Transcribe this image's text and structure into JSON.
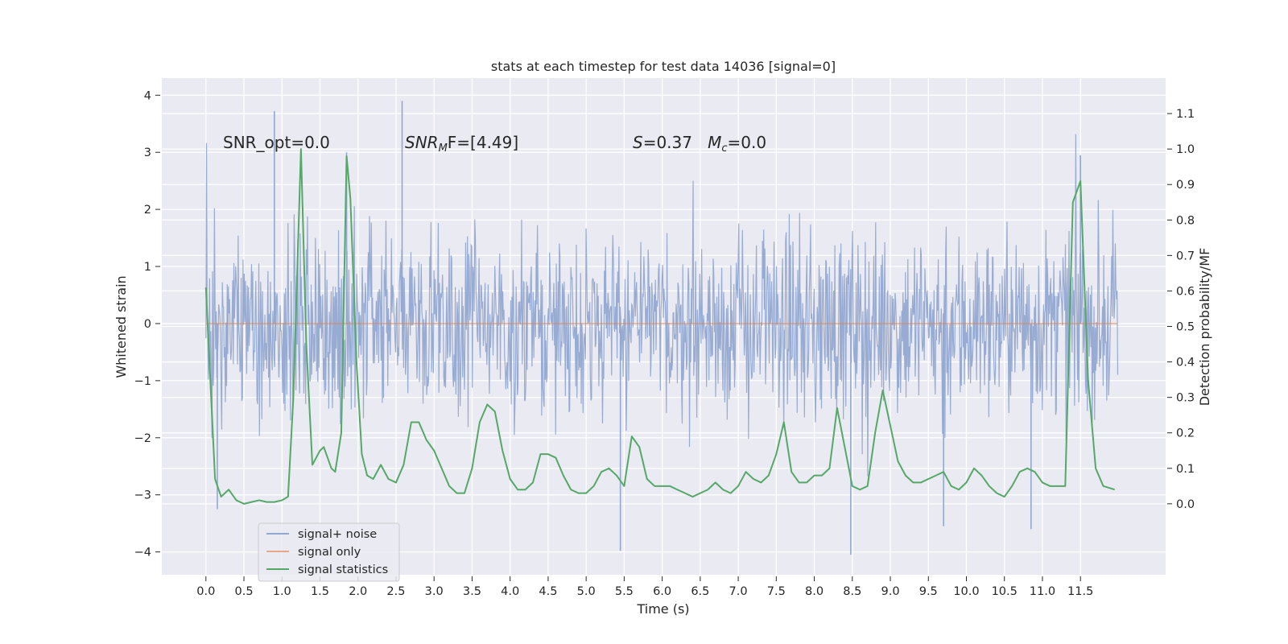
{
  "chart_data": {
    "type": "line",
    "title": "stats at each timestep for test data 14036 [signal=0]",
    "xlabel": "Time (s)",
    "ylabel_left": "Whitened strain",
    "ylabel_right": "Detection probability/MF",
    "xlim": [
      -0.58,
      12.62
    ],
    "ylim_left": [
      -4.4,
      4.3
    ],
    "ylim_right": [
      -0.2,
      1.2
    ],
    "x_ticks": [
      0.0,
      0.5,
      1.0,
      1.5,
      2.0,
      2.5,
      3.0,
      3.5,
      4.0,
      4.5,
      5.0,
      5.5,
      6.0,
      6.5,
      7.0,
      7.5,
      8.0,
      8.5,
      9.0,
      9.5,
      10.0,
      10.5,
      11.0,
      11.5
    ],
    "x_tick_labels": [
      "0.0",
      "0.5",
      "1.0",
      "1.5",
      "2.0",
      "2.5",
      "3.0",
      "3.5",
      "4.0",
      "4.5",
      "5.0",
      "5.5",
      "6.0",
      "6.5",
      "7.0",
      "7.5",
      "8.0",
      "8.5",
      "9.0",
      "9.5",
      "10.0",
      "10.5",
      "11.0",
      "11.5"
    ],
    "y_left_ticks": [
      -4,
      -3,
      -2,
      -1,
      0,
      1,
      2,
      3,
      4
    ],
    "y_left_tick_labels": [
      "−4",
      "−3",
      "−2",
      "−1",
      "0",
      "1",
      "2",
      "3",
      "4"
    ],
    "y_right_ticks": [
      0.0,
      0.1,
      0.2,
      0.3,
      0.4,
      0.5,
      0.6,
      0.7,
      0.8,
      0.9,
      1.0,
      1.1
    ],
    "y_right_tick_labels": [
      "0.0",
      "0.1",
      "0.2",
      "0.3",
      "0.4",
      "0.5",
      "0.6",
      "0.7",
      "0.8",
      "0.9",
      "1.0",
      "1.1"
    ],
    "grid": true,
    "legend_position": "lower-left",
    "annotations": [
      {
        "text": "SNR_opt=0.0",
        "x": 0.2,
        "y": 3.0
      },
      {
        "text_parts": [
          "SNR",
          "M",
          "F=[4.49]"
        ],
        "x": 2.6,
        "y": 3.0
      },
      {
        "text_parts": [
          "S",
          "=0.37   ",
          "M",
          "c",
          "=0.0"
        ],
        "x": 5.6,
        "y": 3.0
      }
    ],
    "series": [
      {
        "name": "signal+ noise",
        "axis": "left",
        "color": "#92a8d1",
        "style": "dense noise band",
        "x_range": [
          0.0,
          11.99
        ],
        "approx_envelope": [
          -2.6,
          2.6
        ],
        "peak_values": [
          {
            "x": 0.9,
            "y": 3.72
          },
          {
            "x": 2.58,
            "y": 3.9
          },
          {
            "x": 5.45,
            "y": -3.98
          },
          {
            "x": 8.48,
            "y": -4.05
          },
          {
            "x": 9.7,
            "y": -3.55
          },
          {
            "x": 10.85,
            "y": -3.6
          },
          {
            "x": 0.15,
            "y": -3.25
          },
          {
            "x": 1.85,
            "y": 3.0
          },
          {
            "x": 11.5,
            "y": 2.95
          }
        ]
      },
      {
        "name": "signal only",
        "axis": "left",
        "color": "#dd8452",
        "x": [
          0.0,
          11.99
        ],
        "y": [
          0.0,
          0.0
        ]
      },
      {
        "name": "signal statistics",
        "axis": "right",
        "color": "#55a868",
        "x": [
          0.0,
          0.12,
          0.2,
          0.3,
          0.4,
          0.5,
          0.6,
          0.7,
          0.8,
          0.9,
          1.0,
          1.08,
          1.15,
          1.25,
          1.32,
          1.4,
          1.45,
          1.5,
          1.55,
          1.6,
          1.65,
          1.7,
          1.78,
          1.85,
          1.9,
          1.98,
          2.05,
          2.12,
          2.2,
          2.3,
          2.4,
          2.5,
          2.6,
          2.7,
          2.8,
          2.9,
          3.0,
          3.1,
          3.2,
          3.3,
          3.4,
          3.5,
          3.6,
          3.7,
          3.8,
          3.9,
          4.0,
          4.1,
          4.2,
          4.3,
          4.4,
          4.5,
          4.6,
          4.7,
          4.8,
          4.9,
          5.0,
          5.1,
          5.2,
          5.3,
          5.4,
          5.5,
          5.6,
          5.7,
          5.8,
          5.9,
          6.0,
          6.1,
          6.2,
          6.3,
          6.4,
          6.5,
          6.6,
          6.7,
          6.8,
          6.9,
          7.0,
          7.1,
          7.2,
          7.3,
          7.4,
          7.5,
          7.6,
          7.7,
          7.8,
          7.9,
          8.0,
          8.1,
          8.2,
          8.3,
          8.4,
          8.5,
          8.6,
          8.7,
          8.8,
          8.9,
          9.0,
          9.1,
          9.2,
          9.3,
          9.4,
          9.5,
          9.6,
          9.7,
          9.8,
          9.9,
          10.0,
          10.1,
          10.2,
          10.3,
          10.4,
          10.5,
          10.6,
          10.7,
          10.8,
          10.9,
          11.0,
          11.1,
          11.2,
          11.3,
          11.4,
          11.5,
          11.6,
          11.7,
          11.8,
          11.95
        ],
        "y": [
          0.61,
          0.07,
          0.02,
          0.04,
          0.01,
          0.0,
          0.005,
          0.01,
          0.005,
          0.005,
          0.01,
          0.02,
          0.3,
          1.0,
          0.45,
          0.11,
          0.13,
          0.15,
          0.16,
          0.13,
          0.1,
          0.09,
          0.2,
          0.98,
          0.86,
          0.4,
          0.14,
          0.08,
          0.07,
          0.11,
          0.07,
          0.06,
          0.11,
          0.23,
          0.23,
          0.18,
          0.15,
          0.1,
          0.05,
          0.03,
          0.03,
          0.1,
          0.23,
          0.28,
          0.26,
          0.15,
          0.07,
          0.04,
          0.04,
          0.06,
          0.14,
          0.14,
          0.13,
          0.08,
          0.04,
          0.03,
          0.03,
          0.05,
          0.09,
          0.1,
          0.08,
          0.05,
          0.19,
          0.16,
          0.07,
          0.05,
          0.05,
          0.05,
          0.04,
          0.03,
          0.02,
          0.03,
          0.04,
          0.06,
          0.04,
          0.03,
          0.05,
          0.09,
          0.07,
          0.06,
          0.08,
          0.14,
          0.23,
          0.09,
          0.06,
          0.06,
          0.08,
          0.08,
          0.1,
          0.27,
          0.16,
          0.05,
          0.04,
          0.05,
          0.2,
          0.32,
          0.22,
          0.12,
          0.08,
          0.06,
          0.06,
          0.07,
          0.08,
          0.09,
          0.05,
          0.04,
          0.06,
          0.1,
          0.08,
          0.05,
          0.03,
          0.02,
          0.05,
          0.09,
          0.1,
          0.09,
          0.06,
          0.05,
          0.05,
          0.05,
          0.85,
          0.91,
          0.35,
          0.1,
          0.05,
          0.04
        ]
      }
    ]
  }
}
